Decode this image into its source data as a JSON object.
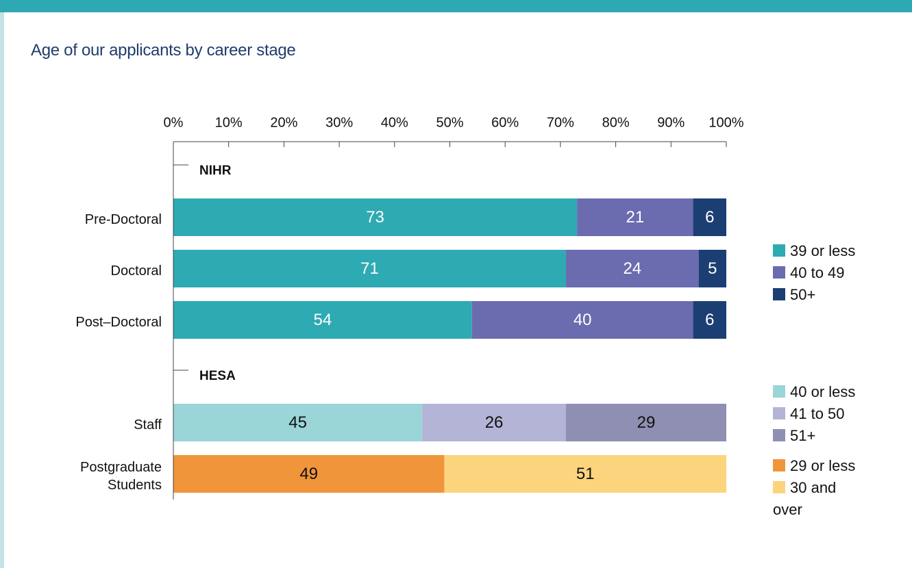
{
  "chart_data": {
    "type": "bar",
    "orientation": "horizontal",
    "stacked": true,
    "title": "Age of our applicants by career stage",
    "xlim": [
      0,
      100
    ],
    "xticks": [
      {
        "value": 0,
        "label": "0%"
      },
      {
        "value": 10,
        "label": "10%"
      },
      {
        "value": 20,
        "label": "20%"
      },
      {
        "value": 30,
        "label": "30%"
      },
      {
        "value": 40,
        "label": "40%"
      },
      {
        "value": 50,
        "label": "50%"
      },
      {
        "value": 60,
        "label": "60%"
      },
      {
        "value": 70,
        "label": "70%"
      },
      {
        "value": 80,
        "label": "80%"
      },
      {
        "value": 90,
        "label": "90%"
      },
      {
        "value": 100,
        "label": "100%"
      }
    ],
    "panels": [
      {
        "name": "NIHR",
        "categories": [
          "Pre-Doctoral",
          "Doctoral",
          "Post–Doctoral"
        ],
        "series": [
          {
            "name": "39 or less",
            "color": "#2eaab3",
            "values": [
              73,
              71,
              54
            ]
          },
          {
            "name": "40 to 49",
            "color": "#6b6bb0",
            "values": [
              21,
              24,
              40
            ]
          },
          {
            "name": "50+",
            "color": "#1c3f73",
            "values": [
              6,
              5,
              6
            ]
          }
        ]
      },
      {
        "name": "HESA",
        "categories": [
          "Staff",
          "Postgraduate Students"
        ],
        "series": [
          {
            "name": "40 or less",
            "color": "#9ad5d8",
            "values": [
              45,
              null
            ]
          },
          {
            "name": "41 to 50",
            "color": "#b4b4d6",
            "values": [
              26,
              null
            ]
          },
          {
            "name": "51+",
            "color": "#8e8fb2",
            "values": [
              29,
              null
            ]
          },
          {
            "name": "29 or less",
            "color": "#f0953a",
            "values": [
              null,
              49
            ]
          },
          {
            "name": "30 and over",
            "color": "#fdd47e",
            "values": [
              null,
              51
            ]
          }
        ]
      }
    ]
  }
}
